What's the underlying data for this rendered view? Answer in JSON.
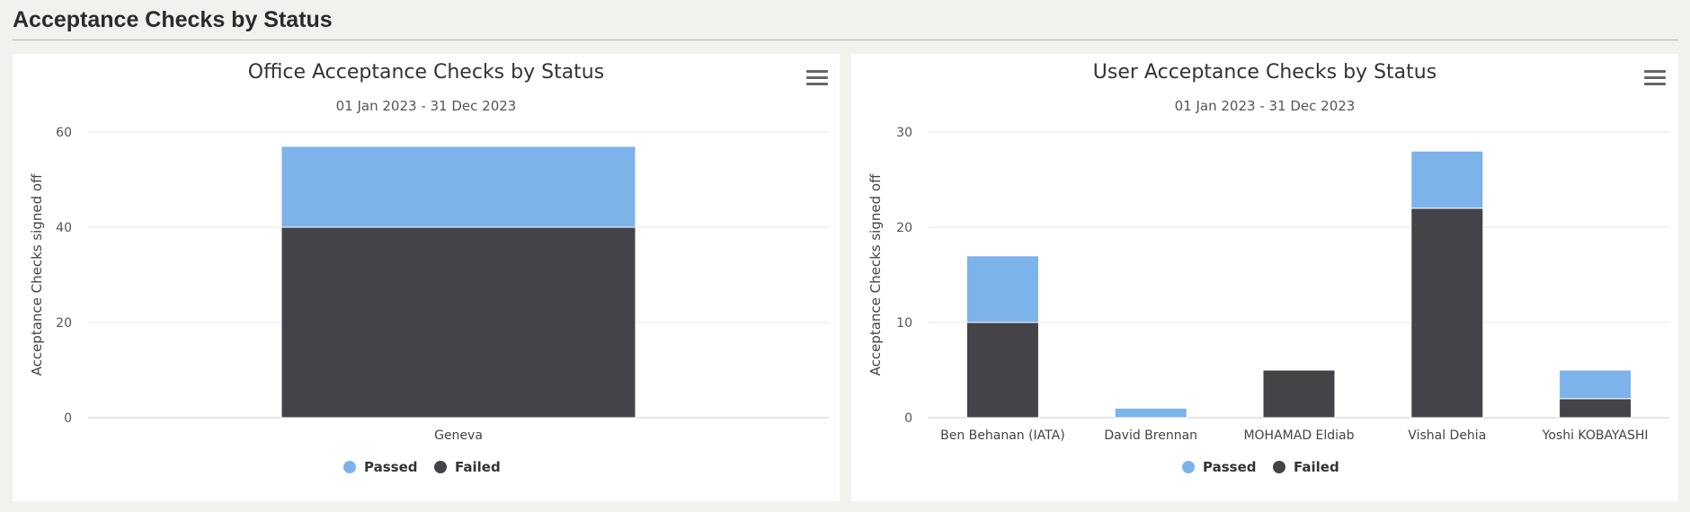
{
  "page": {
    "title": "Acceptance Checks by Status"
  },
  "colors": {
    "passed": "#7cb3eb",
    "failed": "#434348",
    "grid": "#e6e6e6"
  },
  "chart_data": [
    {
      "id": "office",
      "type": "bar",
      "stacked": true,
      "title": "Office Acceptance Checks by Status",
      "subtitle": "01 Jan 2023 - 31 Dec 2023",
      "xlabel": "",
      "ylabel": "Acceptance Checks signed off",
      "ylim": [
        0,
        60
      ],
      "yticks": [
        0,
        20,
        40,
        60
      ],
      "categories": [
        "Geneva"
      ],
      "series": [
        {
          "name": "Passed",
          "color": "#7cb3eb",
          "values": [
            17
          ]
        },
        {
          "name": "Failed",
          "color": "#434348",
          "values": [
            40
          ]
        }
      ],
      "legend": "bottom-center",
      "grid": true
    },
    {
      "id": "user",
      "type": "bar",
      "stacked": true,
      "title": "User Acceptance Checks by Status",
      "subtitle": "01 Jan 2023 - 31 Dec 2023",
      "xlabel": "",
      "ylabel": "Acceptance Checks signed off",
      "ylim": [
        0,
        30
      ],
      "yticks": [
        0,
        10,
        20,
        30
      ],
      "categories": [
        "Ben Behanan (IATA)",
        "David Brennan",
        "MOHAMAD Eldiab",
        "Vishal Dehia",
        "Yoshi KOBAYASHI"
      ],
      "series": [
        {
          "name": "Passed",
          "color": "#7cb3eb",
          "values": [
            7,
            1,
            0,
            6,
            3
          ]
        },
        {
          "name": "Failed",
          "color": "#434348",
          "values": [
            10,
            0,
            5,
            22,
            2
          ]
        }
      ],
      "legend": "bottom-center",
      "grid": true
    }
  ]
}
